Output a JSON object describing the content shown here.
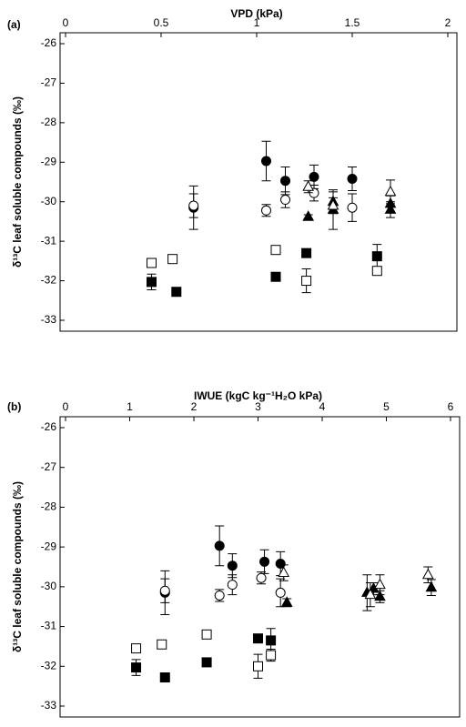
{
  "chart_data": [
    {
      "type": "scatter",
      "panel_label": "(a)",
      "title": "VPD (kPa)",
      "y_label": "δ¹³C leaf soluble compounds (‰)",
      "xlim": [
        0,
        2
      ],
      "xticks": [
        0,
        0.5,
        1,
        1.5,
        2
      ],
      "ylim": [
        -33,
        -26
      ],
      "yticks": [
        -26,
        -27,
        -28,
        -29,
        -30,
        -31,
        -32,
        -33
      ],
      "series": [
        {
          "marker": "circle",
          "color": "#000000",
          "fill": "#000000",
          "x": [
            0.67,
            1.05,
            1.15,
            1.3,
            1.5
          ],
          "values": [
            -30.15,
            -28.97,
            -29.47,
            -29.37,
            -29.42
          ],
          "errors": [
            0.55,
            0.5,
            0.35,
            0.3,
            0.3
          ]
        },
        {
          "marker": "circle",
          "color": "#000000",
          "fill": "#ffffff",
          "x": [
            0.67,
            1.05,
            1.15,
            1.3,
            1.5
          ],
          "values": [
            -30.1,
            -30.22,
            -29.95,
            -29.78,
            -30.15
          ],
          "errors": [
            0.3,
            0.15,
            0.2,
            0.2,
            0.35
          ]
        },
        {
          "marker": "triangle",
          "color": "#000000",
          "fill": "#000000",
          "x": [
            1.27,
            1.4,
            1.4,
            1.7,
            1.7
          ],
          "values": [
            -30.38,
            -30.0,
            -30.2,
            -30.05,
            -30.2
          ],
          "errors": [
            0.05,
            0.25,
            0.5,
            0.2,
            0.2
          ]
        },
        {
          "marker": "triangle",
          "color": "#000000",
          "fill": "#ffffff",
          "x": [
            1.27,
            1.4,
            1.7
          ],
          "values": [
            -29.62,
            -30.1,
            -29.75
          ],
          "errors": [
            0.15,
            0.2,
            0.3
          ]
        },
        {
          "marker": "square",
          "color": "#000000",
          "fill": "#000000",
          "x": [
            0.45,
            0.58,
            1.1,
            1.26,
            1.63
          ],
          "values": [
            -32.03,
            -32.28,
            -31.9,
            -31.3,
            -31.38
          ],
          "errors": [
            0.2,
            0.05,
            0.05,
            0.05,
            0.3
          ]
        },
        {
          "marker": "square",
          "color": "#000000",
          "fill": "#ffffff",
          "x": [
            0.45,
            0.56,
            1.1,
            1.26,
            1.63
          ],
          "values": [
            -31.55,
            -31.45,
            -31.22,
            -32.0,
            -31.75
          ],
          "errors": [
            0.05,
            0.1,
            0.1,
            0.3,
            0.1
          ]
        }
      ]
    },
    {
      "type": "scatter",
      "panel_label": "(b)",
      "title": "IWUE (kgC kg⁻¹H₂O kPa)",
      "y_label": "δ¹³C leaf soluble compounds (‰)",
      "xlim": [
        0,
        6
      ],
      "xticks": [
        0,
        1,
        2,
        3,
        4,
        5,
        6
      ],
      "ylim": [
        -33,
        -26
      ],
      "yticks": [
        -26,
        -27,
        -28,
        -29,
        -30,
        -31,
        -32,
        -33
      ],
      "series": [
        {
          "marker": "circle",
          "color": "#000000",
          "fill": "#000000",
          "x": [
            1.55,
            2.4,
            2.6,
            3.1,
            3.35
          ],
          "values": [
            -30.15,
            -28.97,
            -29.47,
            -29.37,
            -29.42
          ],
          "errors": [
            0.55,
            0.5,
            0.3,
            0.3,
            0.3
          ]
        },
        {
          "marker": "circle",
          "color": "#000000",
          "fill": "#ffffff",
          "x": [
            1.55,
            2.4,
            2.6,
            3.05,
            3.35
          ],
          "values": [
            -30.1,
            -30.22,
            -29.95,
            -29.78,
            -30.15
          ],
          "errors": [
            0.3,
            0.15,
            0.25,
            0.15,
            0.35
          ]
        },
        {
          "marker": "triangle",
          "color": "#000000",
          "fill": "#000000",
          "x": [
            3.45,
            4.7,
            4.8,
            4.9,
            5.7
          ],
          "values": [
            -30.4,
            -30.15,
            -30.05,
            -30.25,
            -30.02
          ],
          "errors": [
            0.1,
            0.45,
            0.15,
            0.15,
            0.2
          ]
        },
        {
          "marker": "triangle",
          "color": "#000000",
          "fill": "#ffffff",
          "x": [
            3.4,
            4.75,
            4.9,
            5.65
          ],
          "values": [
            -29.65,
            -30.2,
            -29.95,
            -29.7
          ],
          "errors": [
            0.2,
            0.3,
            0.25,
            0.2
          ]
        },
        {
          "marker": "square",
          "color": "#000000",
          "fill": "#000000",
          "x": [
            1.1,
            1.55,
            2.2,
            3.0,
            3.2
          ],
          "values": [
            -32.03,
            -32.28,
            -31.9,
            -31.3,
            -31.35
          ],
          "errors": [
            0.2,
            0.05,
            0.05,
            0.05,
            0.3
          ]
        },
        {
          "marker": "square",
          "color": "#000000",
          "fill": "#ffffff",
          "x": [
            1.1,
            1.5,
            2.2,
            3.0,
            3.2
          ],
          "values": [
            -31.55,
            -31.45,
            -31.2,
            -32.0,
            -31.72
          ],
          "errors": [
            0.05,
            0.1,
            0.05,
            0.3,
            0.15
          ]
        }
      ]
    }
  ]
}
